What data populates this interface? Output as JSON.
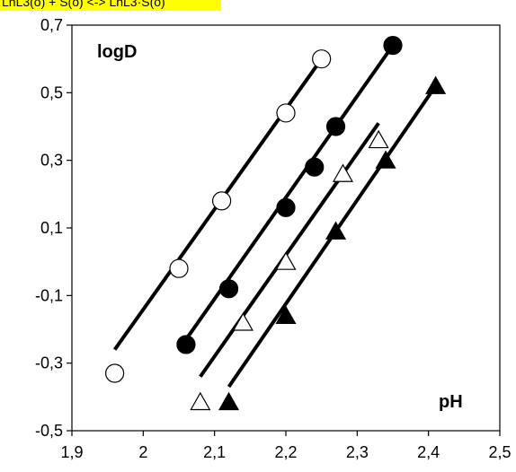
{
  "header_text": "LnL3(o) + S(o) <-> LnL3·S(o)",
  "chart_data": {
    "type": "scatter",
    "title": "",
    "xlabel": "pH",
    "ylabel": "logD",
    "xlim": [
      1.9,
      2.5
    ],
    "ylim": [
      -0.5,
      0.7
    ],
    "x_ticks": [
      1.9,
      2.0,
      2.1,
      2.2,
      2.3,
      2.4,
      2.5
    ],
    "x_tick_labels": [
      "1,9",
      "2",
      "2,1",
      "2,2",
      "2,3",
      "2,4",
      "2,5"
    ],
    "y_ticks": [
      -0.5,
      -0.3,
      -0.1,
      0.1,
      0.3,
      0.5,
      0.7
    ],
    "y_tick_labels": [
      "-0,5",
      "-0,3",
      "-0,1",
      "0,1",
      "0,3",
      "0,5",
      "0,7"
    ],
    "grid": false,
    "legend": "none",
    "series": [
      {
        "marker": "circle-open",
        "points": [
          [
            1.96,
            -0.33
          ],
          [
            2.05,
            -0.02
          ],
          [
            2.11,
            0.18
          ],
          [
            2.2,
            0.44
          ],
          [
            2.25,
            0.6
          ]
        ],
        "fit_line": [
          [
            1.96,
            -0.26
          ],
          [
            2.25,
            0.6
          ]
        ]
      },
      {
        "marker": "circle-filled",
        "points": [
          [
            2.06,
            -0.245
          ],
          [
            2.12,
            -0.08
          ],
          [
            2.2,
            0.16
          ],
          [
            2.24,
            0.28
          ],
          [
            2.27,
            0.4
          ],
          [
            2.35,
            0.64
          ]
        ],
        "fit_line": [
          [
            2.06,
            -0.23
          ],
          [
            2.35,
            0.64
          ]
        ]
      },
      {
        "marker": "triangle-open",
        "points": [
          [
            2.08,
            -0.415
          ],
          [
            2.14,
            -0.18
          ],
          [
            2.2,
            0.0
          ],
          [
            2.28,
            0.26
          ],
          [
            2.33,
            0.36
          ]
        ],
        "fit_line": [
          [
            2.08,
            -0.34
          ],
          [
            2.33,
            0.41
          ]
        ]
      },
      {
        "marker": "triangle-filled",
        "points": [
          [
            2.12,
            -0.415
          ],
          [
            2.2,
            -0.16
          ],
          [
            2.27,
            0.09
          ],
          [
            2.34,
            0.3
          ],
          [
            2.41,
            0.52
          ]
        ],
        "fit_line": [
          [
            2.12,
            -0.37
          ],
          [
            2.41,
            0.52
          ]
        ]
      }
    ]
  }
}
